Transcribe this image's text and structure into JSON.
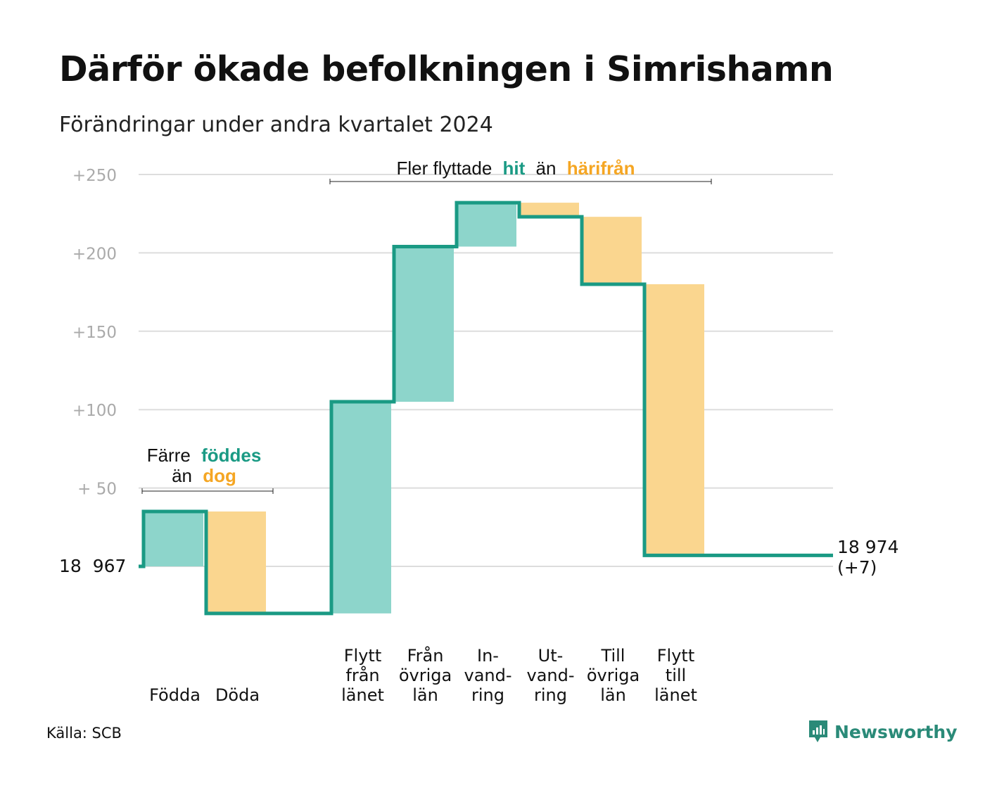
{
  "title": "Därför ökade befolkningen i Simrishamn",
  "subtitle": "Förändringar under andra kvartalet 2024",
  "source": "Källa: SCB",
  "brand": "Newsworthy",
  "colors": {
    "teal_line": "#1a9a84",
    "teal_fill": "#8dd5cb",
    "orange_fill": "#fad68f",
    "teal_text": "#1a9a84",
    "orange_text": "#f5a623",
    "grid": "#dddddd",
    "tick": "#aaaaaa"
  },
  "annotations": {
    "births": {
      "line1_a": "Färre",
      "line1_b": "föddes",
      "line2_a": "än",
      "line2_b": "dog"
    },
    "moves": {
      "part_a": "Fler flyttade",
      "part_b": "hit",
      "part_c": "än",
      "part_d": "härifrån"
    }
  },
  "start_label": "18  967",
  "end_label_line1": "18 974",
  "end_label_line2": "(+7)",
  "chart_data": {
    "type": "waterfall",
    "baseline": 18967,
    "end_value": 18974,
    "y_tick_labels": [
      "+250",
      "+200",
      "+150",
      "+100",
      "+  50"
    ],
    "ylim": [
      -30,
      250
    ],
    "steps": [
      {
        "label_lines": [
          "Födda"
        ],
        "change": 35,
        "kind": "inflow"
      },
      {
        "label_lines": [
          "Döda"
        ],
        "change": -65,
        "kind": "outflow"
      },
      {
        "label_lines": [
          "Flytt",
          "från",
          "länet"
        ],
        "change": 135,
        "kind": "inflow"
      },
      {
        "label_lines": [
          "Från",
          "övriga",
          "län"
        ],
        "change": 99,
        "kind": "inflow"
      },
      {
        "label_lines": [
          "In-",
          "vand-",
          "ring"
        ],
        "change": 28,
        "kind": "inflow"
      },
      {
        "label_lines": [
          "Ut-",
          "vand-",
          "ring"
        ],
        "change": -9,
        "kind": "outflow"
      },
      {
        "label_lines": [
          "Till",
          "övriga",
          "län"
        ],
        "change": -43,
        "kind": "outflow"
      },
      {
        "label_lines": [
          "Flytt",
          "till",
          "länet"
        ],
        "change": -173,
        "kind": "outflow"
      }
    ]
  }
}
